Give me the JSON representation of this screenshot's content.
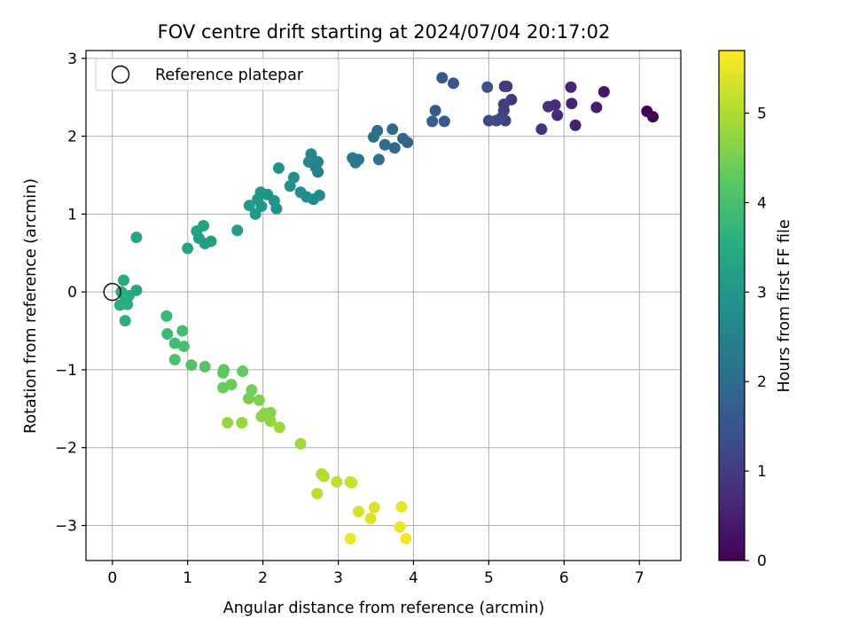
{
  "chart_data": {
    "type": "scatter",
    "title": "FOV centre drift starting at 2024/07/04 20:17:02",
    "xlabel": "Angular distance from reference (arcmin)",
    "ylabel": "Rotation from reference (arcmin)",
    "xlim": [
      -0.35,
      7.55
    ],
    "ylim": [
      -3.45,
      3.1
    ],
    "xticks": [
      0,
      1,
      2,
      3,
      4,
      5,
      6,
      7
    ],
    "yticks": [
      -3,
      -2,
      -1,
      0,
      1,
      2,
      3
    ],
    "grid": true,
    "colormap": "viridis",
    "colorbar": {
      "label": "Hours from first FF file",
      "range": [
        0,
        5.7
      ],
      "ticks": [
        0,
        1,
        2,
        3,
        4,
        5
      ]
    },
    "legend": {
      "position": "top-left",
      "entries": [
        {
          "label": "Reference platepar",
          "marker": "open-circle",
          "x": 0,
          "y": 0
        }
      ]
    },
    "series": [
      {
        "columns": [
          "x",
          "y",
          "hours"
        ],
        "points": [
          [
            7.18,
            2.25,
            0.0
          ],
          [
            7.1,
            2.32,
            0.05
          ],
          [
            6.53,
            2.57,
            0.3
          ],
          [
            6.43,
            2.37,
            0.4
          ],
          [
            6.15,
            2.14,
            0.5
          ],
          [
            6.1,
            2.42,
            0.55
          ],
          [
            6.09,
            2.63,
            0.6
          ],
          [
            5.91,
            2.27,
            0.65
          ],
          [
            5.88,
            2.4,
            0.7
          ],
          [
            5.79,
            2.38,
            0.75
          ],
          [
            5.7,
            2.09,
            0.8
          ],
          [
            5.3,
            2.47,
            0.9
          ],
          [
            5.24,
            2.64,
            0.95
          ],
          [
            5.21,
            2.64,
            1.0
          ],
          [
            5.2,
            2.41,
            1.05
          ],
          [
            5.2,
            2.33,
            1.1
          ],
          [
            5.22,
            2.2,
            1.15
          ],
          [
            5.16,
            2.23,
            1.2
          ],
          [
            5.1,
            2.2,
            1.25
          ],
          [
            5.0,
            2.2,
            1.3
          ],
          [
            4.98,
            2.63,
            1.35
          ],
          [
            4.53,
            2.68,
            1.5
          ],
          [
            4.38,
            2.75,
            1.55
          ],
          [
            4.41,
            2.19,
            1.6
          ],
          [
            4.29,
            2.33,
            1.65
          ],
          [
            4.25,
            2.19,
            1.7
          ],
          [
            3.92,
            1.92,
            1.8
          ],
          [
            3.86,
            1.97,
            1.85
          ],
          [
            3.75,
            1.85,
            1.9
          ],
          [
            3.72,
            2.09,
            1.95
          ],
          [
            3.62,
            1.89,
            2.0
          ],
          [
            3.52,
            2.07,
            2.05
          ],
          [
            3.47,
            1.99,
            2.1
          ],
          [
            3.54,
            1.7,
            2.15
          ],
          [
            3.27,
            1.7,
            2.2
          ],
          [
            3.23,
            1.66,
            2.25
          ],
          [
            3.19,
            1.72,
            2.3
          ],
          [
            2.73,
            1.54,
            2.4
          ],
          [
            2.73,
            1.67,
            2.45
          ],
          [
            2.7,
            1.6,
            2.5
          ],
          [
            2.64,
            1.77,
            2.55
          ],
          [
            2.61,
            1.67,
            2.6
          ],
          [
            2.75,
            1.24,
            2.65
          ],
          [
            2.67,
            1.19,
            2.7
          ],
          [
            2.58,
            1.22,
            2.75
          ],
          [
            2.5,
            1.28,
            2.8
          ],
          [
            2.41,
            1.47,
            2.82
          ],
          [
            2.36,
            1.36,
            2.85
          ],
          [
            2.21,
            1.59,
            2.88
          ],
          [
            2.18,
            1.07,
            2.9
          ],
          [
            2.15,
            1.17,
            2.92
          ],
          [
            2.06,
            1.25,
            2.95
          ],
          [
            1.97,
            1.28,
            2.98
          ],
          [
            1.93,
            1.19,
            3.0
          ],
          [
            1.98,
            1.1,
            3.02
          ],
          [
            1.9,
            1.0,
            3.05
          ],
          [
            1.82,
            1.11,
            3.08
          ],
          [
            1.66,
            0.79,
            3.12
          ],
          [
            1.31,
            0.65,
            3.15
          ],
          [
            1.23,
            0.62,
            3.18
          ],
          [
            1.15,
            0.69,
            3.2
          ],
          [
            1.12,
            0.78,
            3.22
          ],
          [
            1.21,
            0.85,
            3.24
          ],
          [
            1.0,
            0.56,
            3.26
          ],
          [
            0.32,
            0.7,
            3.35
          ],
          [
            0.32,
            0.02,
            3.4
          ],
          [
            0.15,
            0.15,
            3.45
          ],
          [
            0.12,
            0.0,
            3.48
          ],
          [
            0.22,
            -0.05,
            3.5
          ],
          [
            0.2,
            -0.16,
            3.52
          ],
          [
            0.17,
            -0.1,
            3.54
          ],
          [
            0.1,
            -0.17,
            3.56
          ],
          [
            0.17,
            -0.37,
            3.6
          ],
          [
            0.72,
            -0.31,
            3.8
          ],
          [
            0.73,
            -0.54,
            3.85
          ],
          [
            0.83,
            -0.66,
            3.9
          ],
          [
            0.93,
            -0.5,
            3.95
          ],
          [
            0.95,
            -0.7,
            4.0
          ],
          [
            0.83,
            -0.87,
            4.05
          ],
          [
            1.05,
            -0.94,
            4.1
          ],
          [
            1.23,
            -0.96,
            4.15
          ],
          [
            1.48,
            -1.0,
            4.2
          ],
          [
            1.47,
            -1.04,
            4.25
          ],
          [
            1.73,
            -1.02,
            4.3
          ],
          [
            1.47,
            -1.23,
            4.35
          ],
          [
            1.58,
            -1.19,
            4.4
          ],
          [
            1.85,
            -1.26,
            4.45
          ],
          [
            1.81,
            -1.37,
            4.5
          ],
          [
            1.95,
            -1.39,
            4.55
          ],
          [
            2.1,
            -1.55,
            4.6
          ],
          [
            2.02,
            -1.56,
            4.65
          ],
          [
            1.98,
            -1.6,
            4.7
          ],
          [
            2.1,
            -1.66,
            4.72
          ],
          [
            1.53,
            -1.68,
            4.75
          ],
          [
            1.72,
            -1.68,
            4.78
          ],
          [
            2.22,
            -1.74,
            4.8
          ],
          [
            2.5,
            -1.95,
            4.85
          ],
          [
            2.78,
            -2.34,
            5.0
          ],
          [
            2.81,
            -2.37,
            5.05
          ],
          [
            2.72,
            -2.59,
            5.1
          ],
          [
            2.98,
            -2.44,
            5.15
          ],
          [
            3.16,
            -2.44,
            5.2
          ],
          [
            3.18,
            -2.45,
            5.22
          ],
          [
            3.27,
            -2.82,
            5.35
          ],
          [
            3.48,
            -2.77,
            5.4
          ],
          [
            3.43,
            -2.91,
            5.45
          ],
          [
            3.84,
            -2.76,
            5.5
          ],
          [
            3.82,
            -3.02,
            5.55
          ],
          [
            3.16,
            -3.17,
            5.6
          ],
          [
            3.9,
            -3.17,
            5.65
          ]
        ]
      }
    ]
  }
}
